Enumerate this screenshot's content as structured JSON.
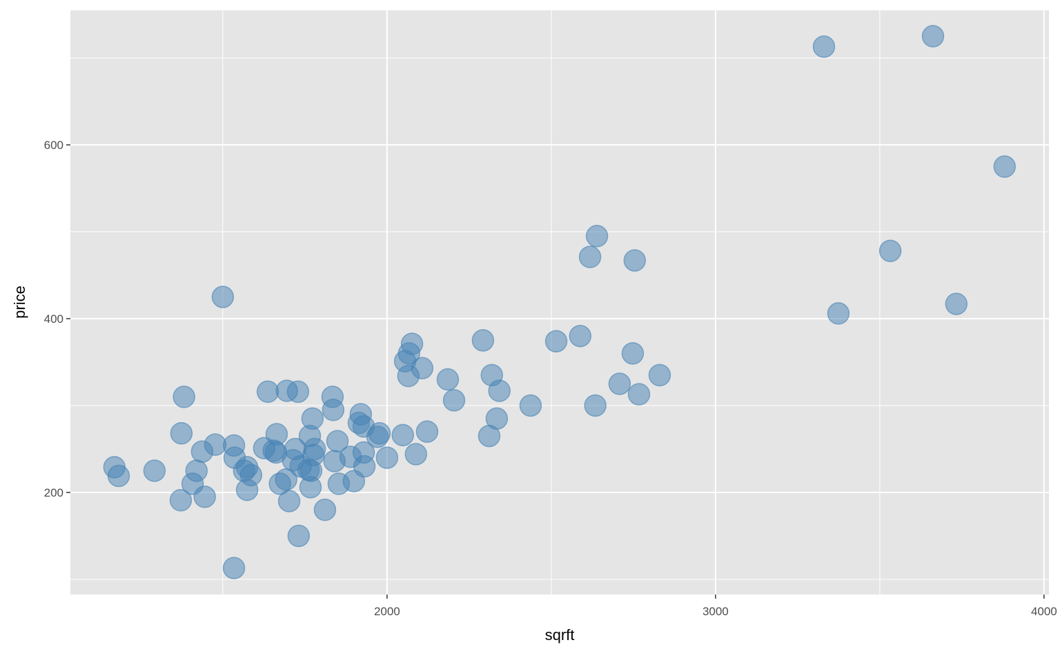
{
  "chart_data": {
    "type": "scatter",
    "x_label": "sqrft",
    "y_label": "price",
    "xlim": [
      1036,
      4015
    ],
    "ylim": [
      82.5,
      754.8
    ],
    "xticks": [
      2000,
      3000,
      4000
    ],
    "yticks": [
      200,
      400,
      600
    ],
    "x_minor_ticks": [
      1500,
      2500,
      3500
    ],
    "y_minor_ticks": [
      100,
      300,
      500,
      700
    ],
    "grid": true,
    "color": "#4682b4",
    "x": [
      1170,
      1183,
      1292,
      1372,
      1374,
      1382,
      1408,
      1420,
      1437,
      1445,
      1477,
      1500,
      1534,
      1534,
      1536,
      1565,
      1574,
      1574,
      1586,
      1626,
      1637,
      1655,
      1662,
      1664,
      1674,
      1693,
      1695,
      1702,
      1714,
      1721,
      1729,
      1731,
      1737,
      1761,
      1765,
      1767,
      1769,
      1773,
      1776,
      1780,
      1811,
      1834,
      1836,
      1840,
      1849,
      1853,
      1889,
      1899,
      1914,
      1920,
      1929,
      1929,
      1931,
      1971,
      1977,
      2000,
      2048,
      2055,
      2065,
      2067,
      2076,
      2088,
      2107,
      2122,
      2185,
      2204,
      2292,
      2311,
      2319,
      2334,
      2342,
      2437,
      2515,
      2588,
      2618,
      2634,
      2639,
      2708,
      2748,
      2754,
      2767,
      2830,
      3330,
      3374,
      3532,
      3662,
      3733,
      3880
    ],
    "values": [
      229,
      219,
      225,
      191,
      268,
      310,
      210,
      225,
      247,
      195,
      255,
      425,
      113,
      254,
      240,
      225,
      229,
      203,
      220,
      251,
      316,
      248,
      246,
      267,
      210,
      215,
      317,
      190,
      237,
      250,
      316,
      150,
      230,
      226,
      265,
      206,
      225,
      285,
      243,
      250,
      180,
      310,
      295,
      236,
      259,
      210,
      241,
      213,
      280,
      290,
      276,
      246,
      230,
      264,
      268,
      240,
      266,
      351,
      334,
      360,
      371,
      244,
      343,
      270,
      330,
      306,
      375,
      265,
      335,
      285,
      317,
      300,
      374,
      380,
      471,
      300,
      495,
      325,
      360,
      467,
      313,
      335,
      713,
      406,
      478,
      725,
      417,
      575
    ]
  }
}
